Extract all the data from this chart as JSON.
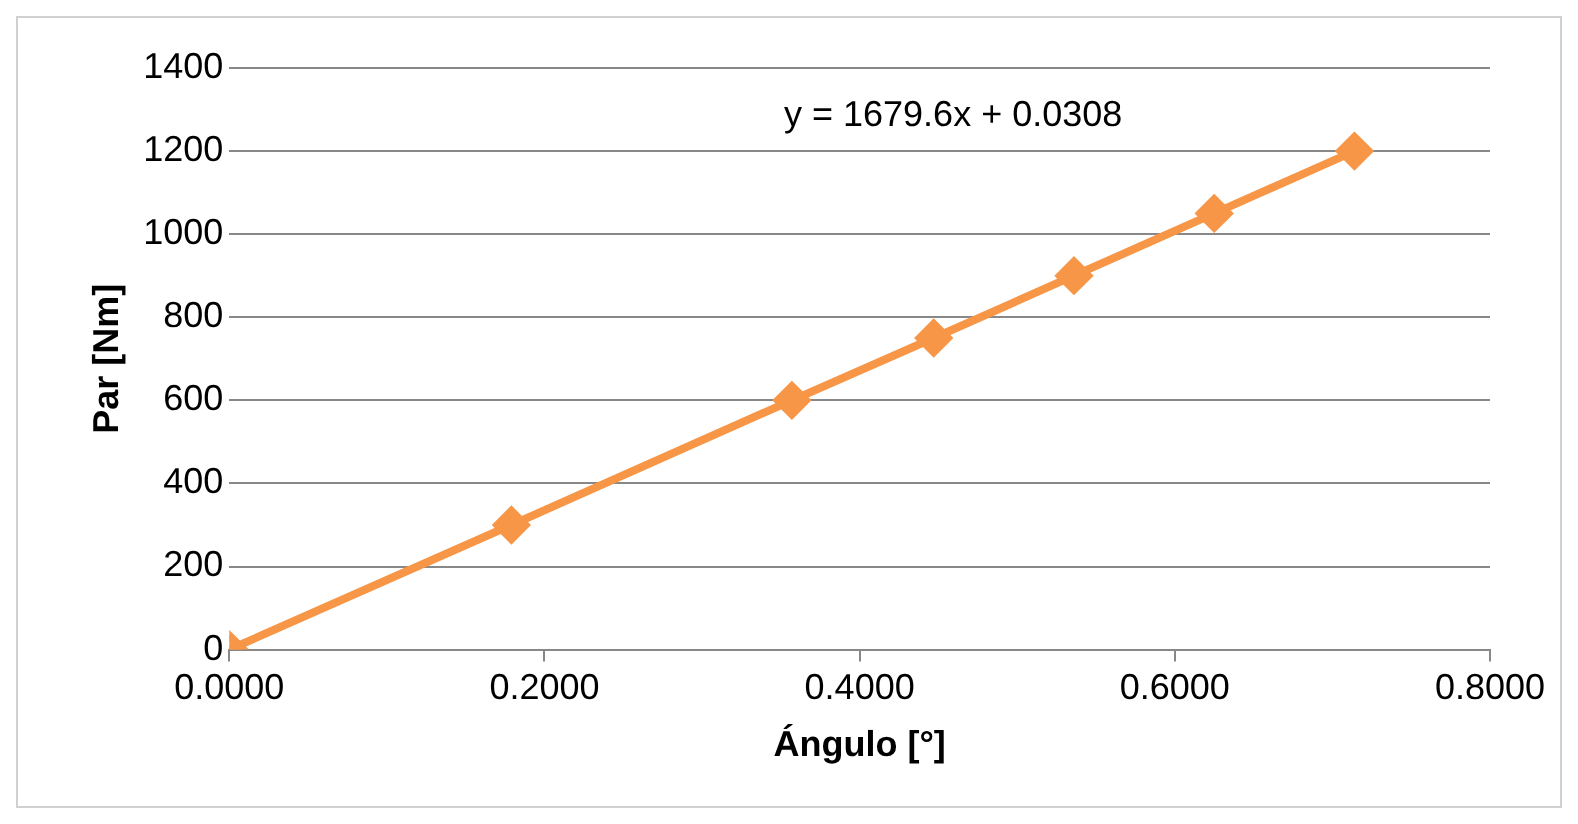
{
  "chart_data": {
    "type": "line",
    "xlabel": "Ángulo [°]",
    "ylabel": "Par [Nm]",
    "x": [
      0,
      0.179,
      0.357,
      0.447,
      0.536,
      0.625,
      0.714
    ],
    "series": [
      {
        "color": "#f79646",
        "values": [
          0,
          300,
          600,
          750,
          900,
          1050,
          1200
        ]
      }
    ],
    "xlim": [
      0,
      0.8
    ],
    "xticks": [
      {
        "value": 0,
        "label": "0.0000"
      },
      {
        "value": 0.2,
        "label": "0.2000"
      },
      {
        "value": 0.4,
        "label": "0.4000"
      },
      {
        "value": 0.6,
        "label": "0.6000"
      },
      {
        "value": 0.8,
        "label": "0.8000"
      }
    ],
    "ylim": [
      0,
      1400
    ],
    "yticks": [
      0,
      200,
      400,
      600,
      800,
      1000,
      1200,
      1400
    ],
    "grid": "y",
    "legend": false,
    "marker": "diamond",
    "line_style": "solid",
    "annotations": [
      "y = 1679.6x + 0.0308"
    ]
  }
}
